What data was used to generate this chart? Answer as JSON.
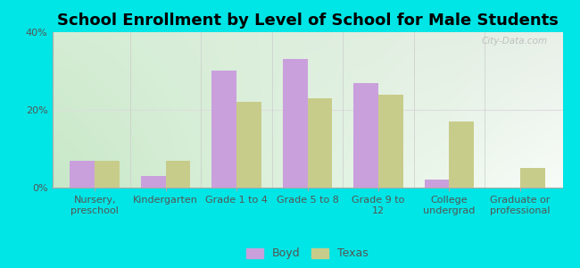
{
  "title": "School Enrollment by Level of School for Male Students",
  "categories": [
    "Nursery,\npreschool",
    "Kindergarten",
    "Grade 1 to 4",
    "Grade 5 to 8",
    "Grade 9 to\n12",
    "College\nundergrad",
    "Graduate or\nprofessional"
  ],
  "boyd_values": [
    7,
    3,
    30,
    33,
    27,
    2,
    0
  ],
  "texas_values": [
    7,
    7,
    22,
    23,
    24,
    17,
    5
  ],
  "boyd_color": "#c9a0dc",
  "texas_color": "#c8cc8a",
  "background_outer": "#00e5e5",
  "grad_top_left": "#d4edd4",
  "grad_top_right": "#e8f0e8",
  "grad_bottom_left": "#c8e8c8",
  "grad_bottom_right": "#f8fcf8",
  "ylim": [
    0,
    40
  ],
  "yticks": [
    0,
    20,
    40
  ],
  "yticklabels": [
    "0%",
    "20%",
    "40%"
  ],
  "bar_width": 0.35,
  "title_fontsize": 13,
  "tick_fontsize": 8,
  "legend_fontsize": 9
}
